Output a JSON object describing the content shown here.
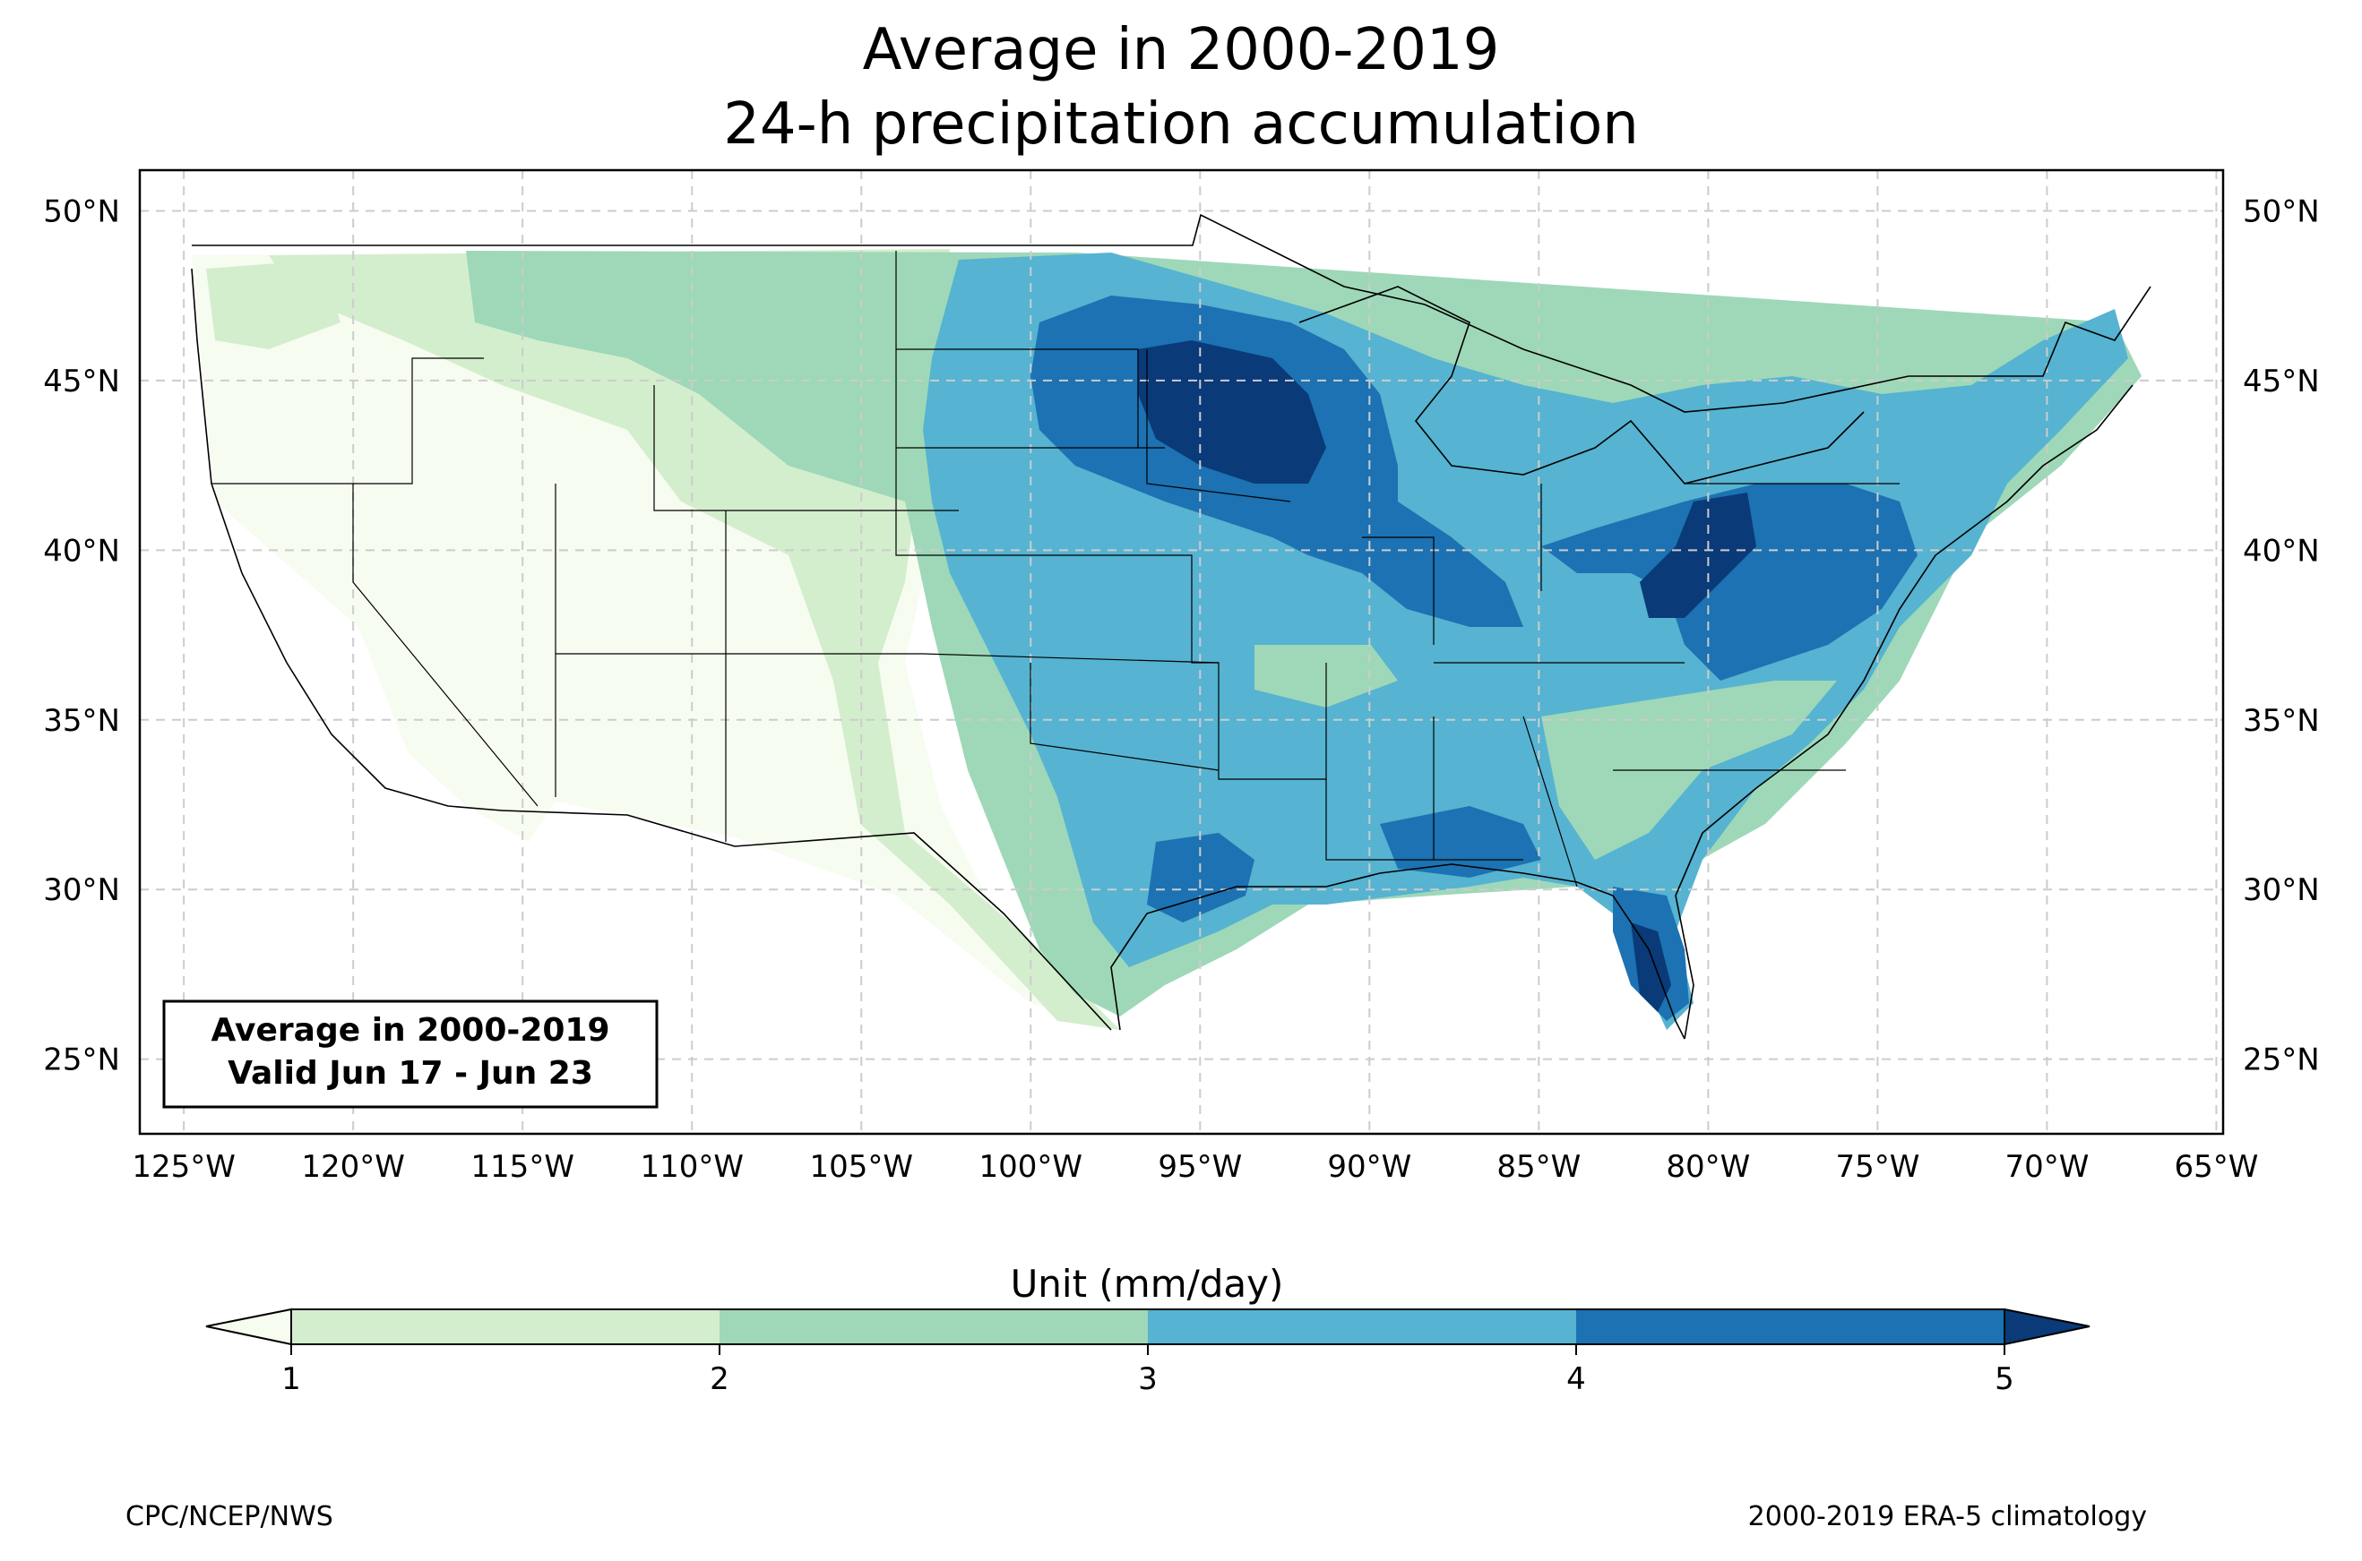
{
  "title": {
    "line1": "Average in 2000-2019",
    "line2": "24-h precipitation accumulation"
  },
  "map": {
    "lon_ticks": [
      "125°W",
      "120°W",
      "115°W",
      "110°W",
      "105°W",
      "100°W",
      "95°W",
      "90°W",
      "85°W",
      "80°W",
      "75°W",
      "70°W",
      "65°W"
    ],
    "lat_ticks": [
      "50°N",
      "45°N",
      "40°N",
      "35°N",
      "30°N",
      "25°N"
    ],
    "lon_range": [
      -126.3,
      -64.8
    ],
    "lat_range": [
      22.8,
      51.2
    ],
    "grid": "dashed"
  },
  "info_box": {
    "line1": "Average in 2000-2019",
    "line2": "Valid Jun 17 - Jun 23"
  },
  "colorbar": {
    "label": "Unit (mm/day)",
    "ticks": [
      "1",
      "2",
      "3",
      "4",
      "5"
    ],
    "colors": {
      "below": "#f7fcf0",
      "b1_2": "#d3eecd",
      "b2_3": "#9ed8b8",
      "b3_4": "#56b3d1",
      "b4_5": "#1c72b2",
      "above": "#0a3a78"
    }
  },
  "footer": {
    "left": "CPC/NCEP/NWS",
    "right": "2000-2019 ERA-5 climatology"
  }
}
